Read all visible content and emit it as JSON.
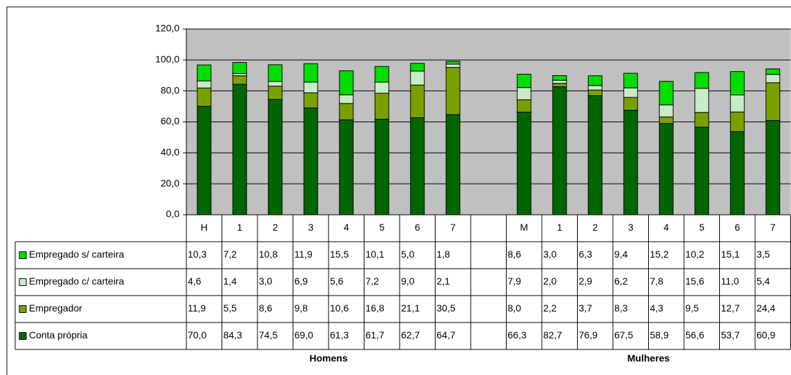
{
  "chart_data": {
    "type": "stacked_bar",
    "categories": [
      "H",
      "1",
      "2",
      "3",
      "4",
      "5",
      "6",
      "7",
      null,
      "M",
      "1",
      "2",
      "3",
      "4",
      "5",
      "6",
      "7"
    ],
    "groups": [
      "Homens",
      "Mulheres"
    ],
    "ylim": [
      0,
      120
    ],
    "yticks": [
      {
        "value": 0,
        "label": "0,0"
      },
      {
        "value": 20,
        "label": "20,0"
      },
      {
        "value": 40,
        "label": "40,0"
      },
      {
        "value": 60,
        "label": "60,0"
      },
      {
        "value": 80,
        "label": "80,0"
      },
      {
        "value": 100,
        "label": "100,0"
      },
      {
        "value": 120,
        "label": "120,0"
      }
    ],
    "grid": true,
    "series": [
      {
        "name": "Conta própria",
        "color": "#006600",
        "values": [
          70.0,
          84.3,
          74.5,
          69.0,
          61.3,
          61.7,
          62.7,
          64.7,
          null,
          66.3,
          82.7,
          76.9,
          67.5,
          58.9,
          56.6,
          53.7,
          60.9
        ],
        "value_labels": [
          "70,0",
          "84,3",
          "74,5",
          "69,0",
          "61,3",
          "61,7",
          "62,7",
          "64,7",
          null,
          "66,3",
          "82,7",
          "76,9",
          "67,5",
          "58,9",
          "56,6",
          "53,7",
          "60,9"
        ]
      },
      {
        "name": "Empregador",
        "color": "#7aa000",
        "values": [
          11.9,
          5.5,
          8.6,
          9.8,
          10.6,
          16.8,
          21.1,
          30.5,
          null,
          8.0,
          2.2,
          3.7,
          8.3,
          4.3,
          9.5,
          12.7,
          24.4
        ],
        "value_labels": [
          "11,9",
          "5,5",
          "8,6",
          "9,8",
          "10,6",
          "16,8",
          "21,1",
          "30,5",
          null,
          "8,0",
          "2,2",
          "3,7",
          "8,3",
          "4,3",
          "9,5",
          "12,7",
          "24,4"
        ]
      },
      {
        "name": "Empregado c/ carteira",
        "color": "#c8ecc8",
        "values": [
          4.6,
          1.4,
          3.0,
          6.9,
          5.6,
          7.2,
          9.0,
          2.1,
          null,
          7.9,
          2.0,
          2.9,
          6.2,
          7.8,
          15.6,
          11.0,
          5.4
        ],
        "value_labels": [
          "4,6",
          "1,4",
          "3,0",
          "6,9",
          "5,6",
          "7,2",
          "9,0",
          "2,1",
          null,
          "7,9",
          "2,0",
          "2,9",
          "6,2",
          "7,8",
          "15,6",
          "11,0",
          "5,4"
        ]
      },
      {
        "name": "Empregado s/ carteira",
        "color": "#00dd00",
        "values": [
          10.3,
          7.2,
          10.8,
          11.9,
          15.5,
          10.1,
          5.0,
          1.8,
          null,
          8.6,
          3.0,
          6.3,
          9.4,
          15.2,
          10.2,
          15.1,
          3.5
        ],
        "value_labels": [
          "10,3",
          "7,2",
          "10,8",
          "11,9",
          "15,5",
          "10,1",
          "5,0",
          "1,8",
          null,
          "8,6",
          "3,0",
          "6,3",
          "9,4",
          "15,2",
          "10,2",
          "15,1",
          "3,5"
        ]
      }
    ]
  }
}
